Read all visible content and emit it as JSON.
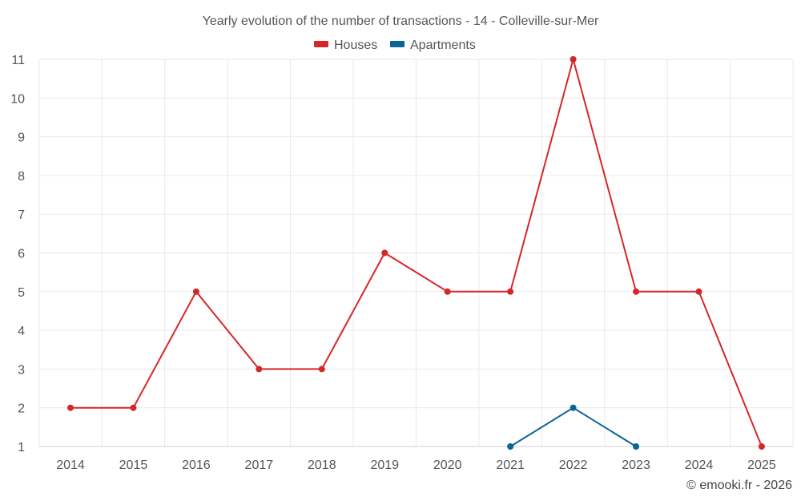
{
  "chart_data": {
    "type": "line",
    "title": "Yearly evolution of the number of transactions - 14 - Colleville-sur-Mer",
    "categories": [
      "2014",
      "2015",
      "2016",
      "2017",
      "2018",
      "2019",
      "2020",
      "2021",
      "2022",
      "2023",
      "2024",
      "2025"
    ],
    "series": [
      {
        "name": "Houses",
        "color": "#d62728",
        "values": [
          2,
          2,
          5,
          3,
          3,
          6,
          5,
          5,
          11,
          5,
          5,
          1
        ]
      },
      {
        "name": "Apartments",
        "color": "#0b6496",
        "values": [
          null,
          null,
          null,
          null,
          null,
          null,
          null,
          1,
          2,
          1,
          null,
          null
        ]
      }
    ],
    "yticks": [
      "1",
      "2",
      "3",
      "4",
      "5",
      "6",
      "7",
      "8",
      "9",
      "10",
      "11"
    ],
    "ylim": [
      1,
      11
    ],
    "xlabel": "",
    "ylabel": "",
    "grid": true,
    "legend_position": "top-center"
  },
  "credit": "© emooki.fr - 2026"
}
